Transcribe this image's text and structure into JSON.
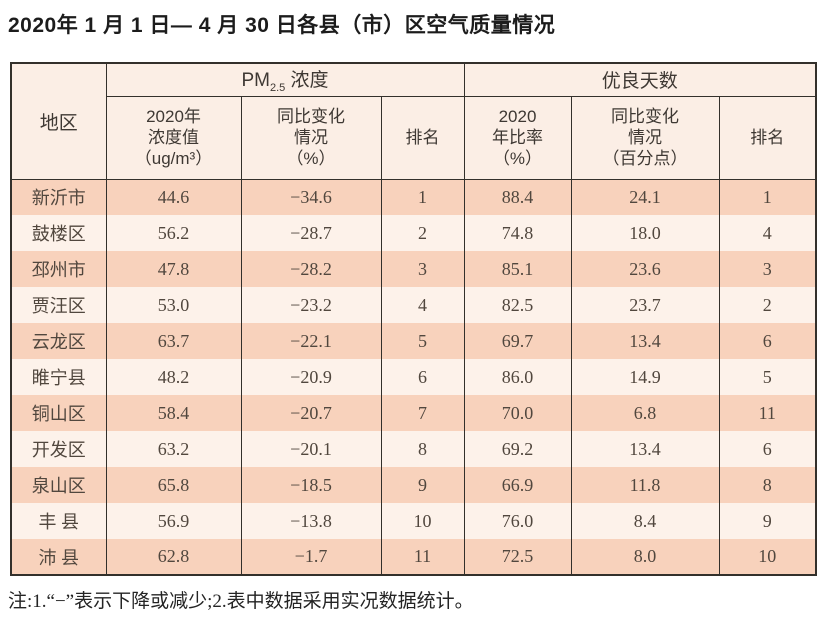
{
  "page": {
    "title": "2020年 1 月 1 日— 4 月 30 日各县（市）区空气质量情况",
    "note": "注:1.“−”表示下降或减少;2.表中数据采用实况数据统计。"
  },
  "colors": {
    "row_dark_pink": "#f8d2bc",
    "row_light_pink": "#fdf2ea",
    "header_bg": "#fbeee5",
    "border": "#33302b",
    "data_text": "#51473e",
    "title_text": "#1c1c1c"
  },
  "table": {
    "corner_header": "地区",
    "pm_group": {
      "prefix": "PM",
      "sub": "2.5",
      "suffix": " 浓度"
    },
    "good_days_label": "优良天数",
    "subheaders": [
      "2020年\n浓度值\n（ug/m³）",
      "同比变化\n情况\n（%）",
      "排名",
      "2020\n年比率\n（%）",
      "同比变化\n情况\n（百分点）",
      "排名"
    ],
    "rows": [
      [
        "新沂市",
        "44.6",
        "−34.6",
        "1",
        "88.4",
        "24.1",
        "1"
      ],
      [
        "鼓楼区",
        "56.2",
        "−28.7",
        "2",
        "74.8",
        "18.0",
        "4"
      ],
      [
        "邳州市",
        "47.8",
        "−28.2",
        "3",
        "85.1",
        "23.6",
        "3"
      ],
      [
        "贾汪区",
        "53.0",
        "−23.2",
        "4",
        "82.5",
        "23.7",
        "2"
      ],
      [
        "云龙区",
        "63.7",
        "−22.1",
        "5",
        "69.7",
        "13.4",
        "6"
      ],
      [
        "睢宁县",
        "48.2",
        "−20.9",
        "6",
        "86.0",
        "14.9",
        "5"
      ],
      [
        "铜山区",
        "58.4",
        "−20.7",
        "7",
        "70.0",
        "6.8",
        "11"
      ],
      [
        "开发区",
        "63.2",
        "−20.1",
        "8",
        "69.2",
        "13.4",
        "6"
      ],
      [
        "泉山区",
        "65.8",
        "−18.5",
        "9",
        "66.9",
        "11.8",
        "8"
      ],
      [
        "丰 县",
        "56.9",
        "−13.8",
        "10",
        "76.0",
        "8.4",
        "9"
      ],
      [
        "沛 县",
        "62.8",
        "−1.7",
        "11",
        "72.5",
        "8.0",
        "10"
      ]
    ]
  }
}
